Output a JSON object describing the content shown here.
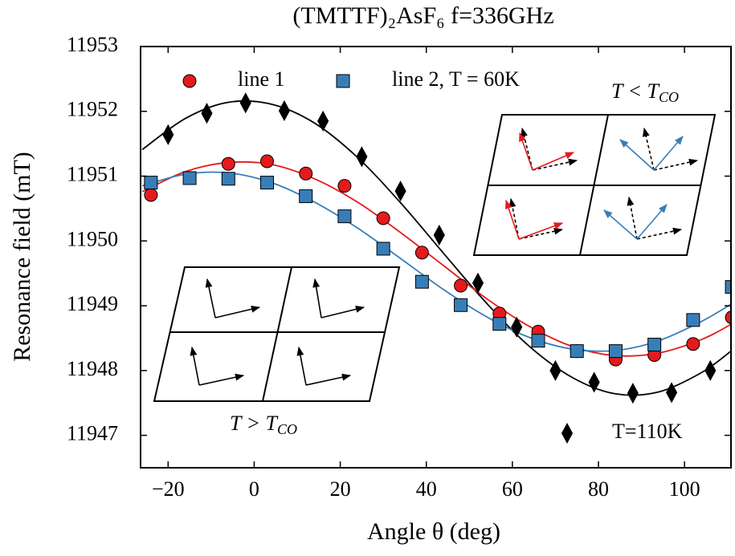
{
  "chart_data": {
    "type": "scatter",
    "title": "(TMTTF)₂AsF₆ f=336GHz",
    "x_label": "Angle θ (deg)",
    "y_label": "Resonance field (mT)",
    "xlim": [
      -26.4,
      110.8
    ],
    "ylim": [
      11946.5,
      11953
    ],
    "xticks": [
      {
        "value": -20,
        "label": "−20"
      },
      0,
      20,
      40,
      60,
      80,
      100
    ],
    "yticks": [
      11947,
      11948,
      11949,
      11950,
      11951,
      11952,
      11953
    ],
    "series": [
      {
        "name": "line 1",
        "color": "#e41a1c",
        "marker": "circle",
        "x": [
          -24,
          -6,
          3,
          12,
          21,
          30,
          39,
          48,
          57,
          66,
          75,
          84,
          93,
          102,
          111
        ],
        "values": [
          11950.71,
          11951.19,
          11951.23,
          11951.04,
          11950.85,
          11950.35,
          11949.82,
          11949.31,
          11948.88,
          11948.6,
          11948.3,
          11948.17,
          11948.24,
          11948.41,
          11948.82
        ]
      },
      {
        "name": "line 2, T = 60K",
        "color": "#377eb8",
        "marker": "square",
        "x": [
          -24,
          -15,
          -6,
          3,
          12,
          21,
          30,
          39,
          48,
          57,
          66,
          75,
          84,
          93,
          102,
          111
        ],
        "values": [
          11950.9,
          11950.97,
          11950.96,
          11950.9,
          11950.69,
          11950.38,
          11949.88,
          11949.37,
          11949.01,
          11948.72,
          11948.46,
          11948.3,
          11948.3,
          11948.4,
          11948.78,
          11949.29
        ]
      },
      {
        "name": "T=110K",
        "color": "#000000",
        "marker": "diamond",
        "x": [
          -20,
          -11,
          -2,
          7,
          16,
          25,
          34,
          43,
          52,
          61,
          70,
          79,
          88,
          97,
          106
        ],
        "values": [
          11951.64,
          11951.97,
          11952.13,
          11952.01,
          11951.85,
          11951.3,
          11950.77,
          11950.09,
          11949.35,
          11948.67,
          11948.0,
          11947.82,
          11947.65,
          11947.66,
          11948.0
        ]
      }
    ],
    "fits": [
      {
        "color": "#000000",
        "x": [
          -26,
          -16,
          -6,
          4,
          14,
          24,
          34,
          44,
          54,
          64,
          74,
          84,
          94,
          104,
          111
        ],
        "values": [
          11951.41,
          11951.89,
          11952.14,
          11952.11,
          11951.82,
          11951.29,
          11950.59,
          11949.81,
          11949.04,
          11948.37,
          11947.89,
          11947.64,
          11947.67,
          11947.97,
          11948.31
        ]
      },
      {
        "color": "#e41a1c",
        "x": [
          -26,
          -16,
          -6,
          4,
          14,
          24,
          34,
          44,
          54,
          64,
          74,
          84,
          94,
          104,
          111
        ],
        "values": [
          11950.76,
          11951.07,
          11951.21,
          11951.18,
          11950.96,
          11950.6,
          11950.13,
          11949.62,
          11949.11,
          11948.68,
          11948.37,
          11948.23,
          11948.27,
          11948.48,
          11948.72
        ]
      },
      {
        "color": "#377eb8",
        "x": [
          -26,
          -16,
          -6,
          4,
          14,
          24,
          34,
          44,
          54,
          64,
          74,
          84,
          94,
          104,
          111
        ],
        "values": [
          11950.85,
          11951.03,
          11951.05,
          11950.9,
          11950.6,
          11950.2,
          11949.73,
          11949.25,
          11948.83,
          11948.51,
          11948.33,
          11948.31,
          11948.46,
          11948.76,
          11949.03
        ]
      }
    ],
    "annotations": [
      {
        "main": "T < T",
        "sub": "CO"
      },
      {
        "main": "T > T",
        "sub": "CO"
      }
    ]
  }
}
